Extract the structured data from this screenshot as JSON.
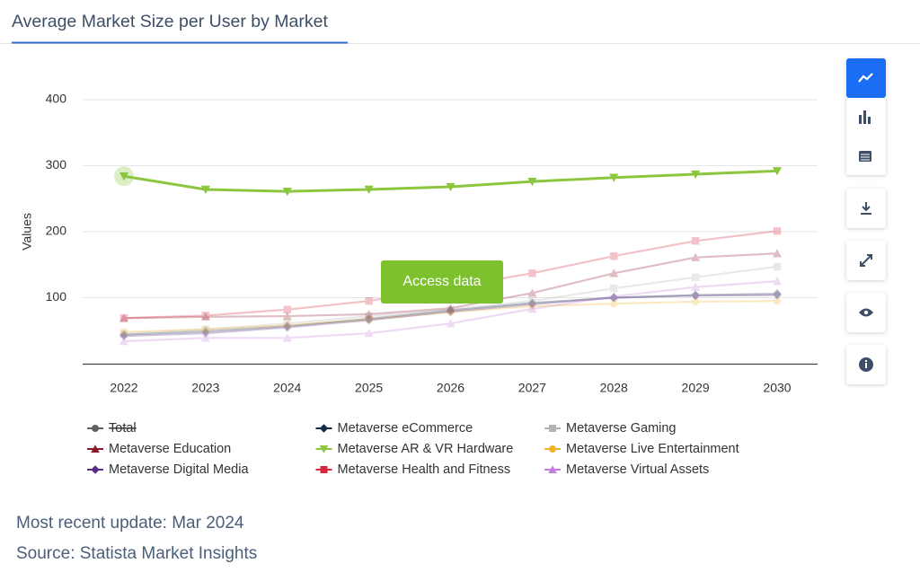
{
  "header": {
    "title": "Average Market Size per User by Market"
  },
  "chart_data": {
    "type": "line",
    "y_label": "Values",
    "categories": [
      "2022",
      "2023",
      "2024",
      "2025",
      "2026",
      "2027",
      "2028",
      "2029",
      "2030"
    ],
    "ylim": [
      0,
      400
    ],
    "yticks": [
      100,
      200,
      300,
      400
    ],
    "grid": true,
    "highlight_index": 4,
    "series": [
      {
        "name": "Total",
        "color": "#606060",
        "marker": "circle",
        "visible": false
      },
      {
        "name": "Metaverse eCommerce",
        "color": "#0f2d47",
        "marker": "diamond",
        "values": [
          44,
          49,
          57,
          68,
          81,
          92,
          100,
          104,
          106
        ]
      },
      {
        "name": "Metaverse Gaming",
        "color": "#b3b3b3",
        "marker": "square",
        "values": [
          45,
          52,
          61,
          72,
          82,
          95,
          114,
          131,
          147
        ]
      },
      {
        "name": "Metaverse Education",
        "color": "#8b1a2b",
        "marker": "triangle",
        "values": [
          69,
          71,
          72,
          75,
          84,
          107,
          137,
          161,
          167
        ]
      },
      {
        "name": "Metaverse AR & VR Hardware",
        "color": "#8cc63f",
        "marker": "triangle-down",
        "values": [
          284,
          264,
          261,
          264,
          268,
          276,
          282,
          287,
          292
        ]
      },
      {
        "name": "Metaverse Live Entertainment",
        "color": "#f0b429",
        "marker": "circle",
        "values": [
          48,
          52,
          58,
          67,
          78,
          87,
          91,
          94,
          95
        ]
      },
      {
        "name": "Metaverse Digital Media",
        "color": "#5b2c83",
        "marker": "diamond",
        "values": [
          42,
          46,
          55,
          66,
          79,
          90,
          100,
          103,
          104
        ]
      },
      {
        "name": "Metaverse Health and Fitness",
        "color": "#d7263d",
        "marker": "square",
        "values": [
          69,
          73,
          82,
          95,
          116,
          137,
          163,
          186,
          201
        ]
      },
      {
        "name": "Metaverse Virtual Assets",
        "color": "#c77ddd",
        "marker": "triangle",
        "values": [
          34,
          39,
          39,
          46,
          61,
          83,
          102,
          116,
          125
        ]
      }
    ]
  },
  "button": "Access data",
  "footer": {
    "update": "Most recent update: Mar 2024",
    "source": "Source: Statista Market Insights"
  }
}
